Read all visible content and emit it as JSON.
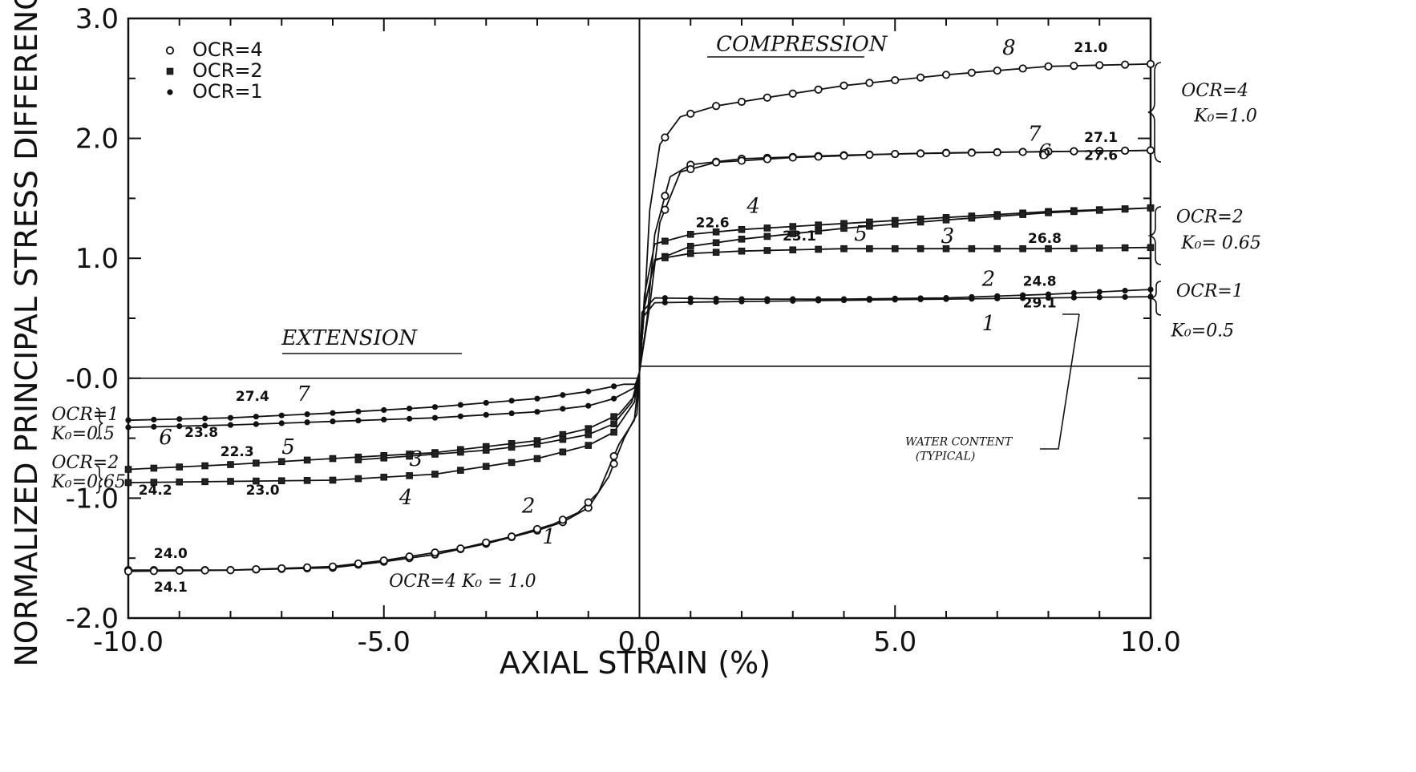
{
  "chart_data": {
    "type": "line",
    "title": "",
    "xlabel": "AXIAL STRAIN (%)",
    "ylabel": "NORMALIZED PRINCIPAL STRESS DIFFERENCE",
    "xlim": [
      -10,
      10
    ],
    "ylim": [
      -2,
      3
    ],
    "x_ticks": [
      -10,
      -5,
      0,
      5,
      10
    ],
    "x_tick_labels": [
      "-10.0",
      "-5.0",
      "0.0",
      "5.0",
      "10.0"
    ],
    "y_ticks": [
      -2,
      -1,
      0,
      1,
      2,
      3
    ],
    "y_tick_labels": [
      "-2.0",
      "-1.0",
      "-0.0",
      "1.0",
      "2.0",
      "3.0"
    ],
    "grid": false,
    "legend_position": "top-left",
    "legend": [
      {
        "label": "OCR=4",
        "marker": "circle"
      },
      {
        "label": "OCR=2",
        "marker": "square"
      },
      {
        "label": "OCR=1",
        "marker": "diamond"
      }
    ],
    "series": [
      {
        "test": "8",
        "group": "OCR=4",
        "marker": "circle",
        "points": [
          [
            0,
            0.05
          ],
          [
            0.1,
            0.6
          ],
          [
            0.2,
            1.4
          ],
          [
            0.4,
            1.95
          ],
          [
            0.8,
            2.18
          ],
          [
            1.5,
            2.27
          ],
          [
            2.5,
            2.34
          ],
          [
            4,
            2.44
          ],
          [
            6,
            2.53
          ],
          [
            8,
            2.6
          ],
          [
            10,
            2.62
          ]
        ],
        "water_content": "21.0"
      },
      {
        "test": "7",
        "group": "OCR=4",
        "marker": "circle",
        "points": [
          [
            0,
            0.05
          ],
          [
            0.15,
            0.5
          ],
          [
            0.3,
            1.2
          ],
          [
            0.6,
            1.68
          ],
          [
            1,
            1.78
          ],
          [
            2,
            1.83
          ],
          [
            4,
            1.86
          ],
          [
            6,
            1.88
          ],
          [
            8,
            1.89
          ],
          [
            10,
            1.9
          ]
        ],
        "water_content": "27.1"
      },
      {
        "test": "6",
        "group": "OCR=4",
        "marker": "circle",
        "points": [
          [
            0,
            0.05
          ],
          [
            0.2,
            0.6
          ],
          [
            0.4,
            1.3
          ],
          [
            0.8,
            1.72
          ],
          [
            1.5,
            1.8
          ],
          [
            3,
            1.84
          ],
          [
            5,
            1.87
          ],
          [
            8,
            1.89
          ],
          [
            10,
            1.9
          ]
        ],
        "water_content": "27.6"
      },
      {
        "test": "4",
        "group": "OCR=2",
        "marker": "square",
        "points": [
          [
            0,
            0.05
          ],
          [
            0.1,
            0.7
          ],
          [
            0.3,
            1.12
          ],
          [
            1,
            1.2
          ],
          [
            2,
            1.24
          ],
          [
            4,
            1.29
          ],
          [
            6,
            1.34
          ],
          [
            8,
            1.39
          ],
          [
            10,
            1.42
          ]
        ],
        "water_content": "22.6"
      },
      {
        "test": "5",
        "group": "OCR=2",
        "marker": "square",
        "points": [
          [
            0,
            0.05
          ],
          [
            0.1,
            0.6
          ],
          [
            0.3,
            0.98
          ],
          [
            1,
            1.1
          ],
          [
            2,
            1.16
          ],
          [
            4,
            1.25
          ],
          [
            6,
            1.32
          ],
          [
            8,
            1.38
          ],
          [
            10,
            1.42
          ]
        ],
        "water_content": "23.1"
      },
      {
        "test": "3",
        "group": "OCR=2",
        "marker": "square",
        "points": [
          [
            0,
            0.05
          ],
          [
            0.1,
            0.6
          ],
          [
            0.3,
            0.99
          ],
          [
            1,
            1.04
          ],
          [
            2,
            1.06
          ],
          [
            4,
            1.08
          ],
          [
            6,
            1.08
          ],
          [
            8,
            1.08
          ],
          [
            10,
            1.09
          ]
        ],
        "water_content": "26.8"
      },
      {
        "test": "2",
        "group": "OCR=1",
        "marker": "diamond",
        "points": [
          [
            0,
            0.05
          ],
          [
            0.05,
            0.55
          ],
          [
            0.3,
            0.67
          ],
          [
            2,
            0.66
          ],
          [
            4,
            0.66
          ],
          [
            6,
            0.67
          ],
          [
            8,
            0.7
          ],
          [
            10,
            0.74
          ]
        ],
        "water_content": "24.8"
      },
      {
        "test": "1",
        "group": "OCR=1",
        "marker": "diamond",
        "points": [
          [
            0,
            0.05
          ],
          [
            0.05,
            0.5
          ],
          [
            0.3,
            0.63
          ],
          [
            2,
            0.64
          ],
          [
            4,
            0.65
          ],
          [
            6,
            0.66
          ],
          [
            8,
            0.67
          ],
          [
            10,
            0.68
          ]
        ],
        "water_content": "29.1"
      },
      {
        "test": "7",
        "group": "OCR=1",
        "marker": "diamond",
        "points": [
          [
            0,
            0.05
          ],
          [
            -0.05,
            -0.05
          ],
          [
            -0.3,
            -0.05
          ],
          [
            -1,
            -0.11
          ],
          [
            -2,
            -0.17
          ],
          [
            -4,
            -0.24
          ],
          [
            -6,
            -0.29
          ],
          [
            -8,
            -0.33
          ],
          [
            -10,
            -0.35
          ]
        ],
        "water_content": "27.4"
      },
      {
        "test": "6",
        "group": "OCR=1",
        "marker": "diamond",
        "points": [
          [
            0,
            0.05
          ],
          [
            -0.1,
            -0.08
          ],
          [
            -0.5,
            -0.17
          ],
          [
            -1,
            -0.23
          ],
          [
            -2,
            -0.28
          ],
          [
            -4,
            -0.33
          ],
          [
            -6,
            -0.36
          ],
          [
            -8,
            -0.39
          ],
          [
            -10,
            -0.41
          ]
        ],
        "water_content": "23.8"
      },
      {
        "test": "5",
        "group": "OCR=2",
        "marker": "square",
        "points": [
          [
            0,
            0.05
          ],
          [
            -0.1,
            -0.15
          ],
          [
            -0.4,
            -0.3
          ],
          [
            -1,
            -0.42
          ],
          [
            -2,
            -0.52
          ],
          [
            -4,
            -0.62
          ],
          [
            -6,
            -0.67
          ],
          [
            -8,
            -0.72
          ],
          [
            -10,
            -0.76
          ]
        ],
        "water_content": "22.3"
      },
      {
        "test": "3",
        "group": "OCR=2",
        "marker": "square",
        "points": [
          [
            0,
            0.05
          ],
          [
            -0.15,
            -0.2
          ],
          [
            -0.5,
            -0.38
          ],
          [
            -1,
            -0.47
          ],
          [
            -2,
            -0.55
          ],
          [
            -3,
            -0.6
          ],
          [
            -4.5,
            -0.65
          ],
          [
            -5.5,
            -0.68
          ]
        ]
      },
      {
        "test": "4",
        "group": "OCR=2",
        "marker": "square",
        "points": [
          [
            0,
            0.05
          ],
          [
            -0.1,
            -0.2
          ],
          [
            -0.5,
            -0.45
          ],
          [
            -1,
            -0.56
          ],
          [
            -2,
            -0.67
          ],
          [
            -4,
            -0.8
          ],
          [
            -6,
            -0.85
          ],
          [
            -8,
            -0.86
          ],
          [
            -10,
            -0.87
          ]
        ],
        "water_content": "24.2"
      },
      {
        "test": "2",
        "group": "OCR=4",
        "marker": "circle",
        "points": [
          [
            0,
            0.05
          ],
          [
            -0.05,
            -0.3
          ],
          [
            -0.3,
            -0.5
          ],
          [
            -0.6,
            -0.82
          ],
          [
            -1,
            -1.08
          ],
          [
            -1.5,
            -1.2
          ],
          [
            -2,
            -1.27
          ],
          [
            -3,
            -1.38
          ],
          [
            -4,
            -1.47
          ],
          [
            -5,
            -1.53
          ],
          [
            -6,
            -1.58
          ],
          [
            -8,
            -1.6
          ],
          [
            -10,
            -1.6
          ]
        ],
        "water_content": "24.0"
      },
      {
        "test": "1",
        "group": "OCR=4",
        "marker": "circle",
        "points": [
          [
            0,
            0.05
          ],
          [
            -0.1,
            -0.35
          ],
          [
            -0.4,
            -0.55
          ],
          [
            -0.8,
            -0.95
          ],
          [
            -1.2,
            -1.12
          ],
          [
            -1.7,
            -1.22
          ],
          [
            -2.5,
            -1.32
          ],
          [
            -3.5,
            -1.42
          ],
          [
            -5,
            -1.52
          ],
          [
            -6,
            -1.57
          ],
          [
            -8,
            -1.6
          ],
          [
            -10,
            -1.61
          ]
        ],
        "water_content": "24.1"
      }
    ],
    "water_content_labels": [
      {
        "text": "21.0",
        "x": 8.5,
        "y": 2.72
      },
      {
        "text": "27.1",
        "x": 8.7,
        "y": 1.97
      },
      {
        "text": "27.6",
        "x": 8.7,
        "y": 1.82
      },
      {
        "text": "22.6",
        "x": 1.1,
        "y": 1.26
      },
      {
        "text": "23.1",
        "x": 2.8,
        "y": 1.15
      },
      {
        "text": "26.8",
        "x": 7.6,
        "y": 1.13
      },
      {
        "text": "24.8",
        "x": 7.5,
        "y": 0.77
      },
      {
        "text": "29.1",
        "x": 7.5,
        "y": 0.59
      },
      {
        "text": "27.4",
        "x": -7.9,
        "y": -0.19
      },
      {
        "text": "23.8",
        "x": -8.9,
        "y": -0.49
      },
      {
        "text": "22.3",
        "x": -8.2,
        "y": -0.65
      },
      {
        "text": "24.2",
        "x": -9.8,
        "y": -0.97
      },
      {
        "text": "23.0",
        "x": -7.7,
        "y": -0.97
      },
      {
        "text": "24.0",
        "x": -9.5,
        "y": -1.5
      },
      {
        "text": "24.1",
        "x": -9.5,
        "y": -1.78
      }
    ],
    "handwritten_annotations": [
      {
        "text": "COMPRESSION",
        "x": 1.5,
        "y": 2.73
      },
      {
        "text": "EXTENSION",
        "x": -7.0,
        "y": 0.28
      },
      {
        "text": "OCR=4",
        "x": 10.6,
        "y": 2.35
      },
      {
        "text": "K₀=1.0",
        "x": 10.85,
        "y": 2.14
      },
      {
        "text": "OCR=2",
        "x": 10.5,
        "y": 1.3
      },
      {
        "text": "K₀= 0.65",
        "x": 10.6,
        "y": 1.08
      },
      {
        "text": "OCR=1",
        "x": 10.5,
        "y": 0.68
      },
      {
        "text": "K₀=0.5",
        "x": 10.4,
        "y": 0.35
      },
      {
        "text": "OCR=1",
        "x": -11.5,
        "y": -0.35
      },
      {
        "text": "K₀=0.5",
        "x": -11.5,
        "y": -0.51
      },
      {
        "text": "OCR=2",
        "x": -11.5,
        "y": -0.75
      },
      {
        "text": "K₀=0.65",
        "x": -11.5,
        "y": -0.91
      },
      {
        "text": "OCR=4  K₀ = 1.0",
        "x": -4.9,
        "y": -1.74
      },
      {
        "text": "WATER CONTENT",
        "x": 5.2,
        "y": -0.56
      },
      {
        "text": "(TYPICAL)",
        "x": 5.4,
        "y": -0.68
      },
      {
        "text": "8",
        "x": 7.1,
        "y": 2.7
      },
      {
        "text": "7",
        "x": 7.6,
        "y": 1.98
      },
      {
        "text": "6",
        "x": 7.8,
        "y": 1.83
      },
      {
        "text": "4",
        "x": 2.1,
        "y": 1.38
      },
      {
        "text": "5",
        "x": 4.2,
        "y": 1.15
      },
      {
        "text": "3",
        "x": 5.9,
        "y": 1.13
      },
      {
        "text": "2",
        "x": 6.7,
        "y": 0.77
      },
      {
        "text": "1",
        "x": 6.7,
        "y": 0.4
      },
      {
        "text": "7",
        "x": -6.7,
        "y": -0.19
      },
      {
        "text": "6",
        "x": -9.4,
        "y": -0.55
      },
      {
        "text": "5",
        "x": -7.0,
        "y": -0.63
      },
      {
        "text": "3",
        "x": -4.5,
        "y": -0.73
      },
      {
        "text": "4",
        "x": -4.7,
        "y": -1.05
      },
      {
        "text": "2",
        "x": -2.3,
        "y": -1.12
      },
      {
        "text": "1",
        "x": -1.9,
        "y": -1.38
      }
    ]
  }
}
